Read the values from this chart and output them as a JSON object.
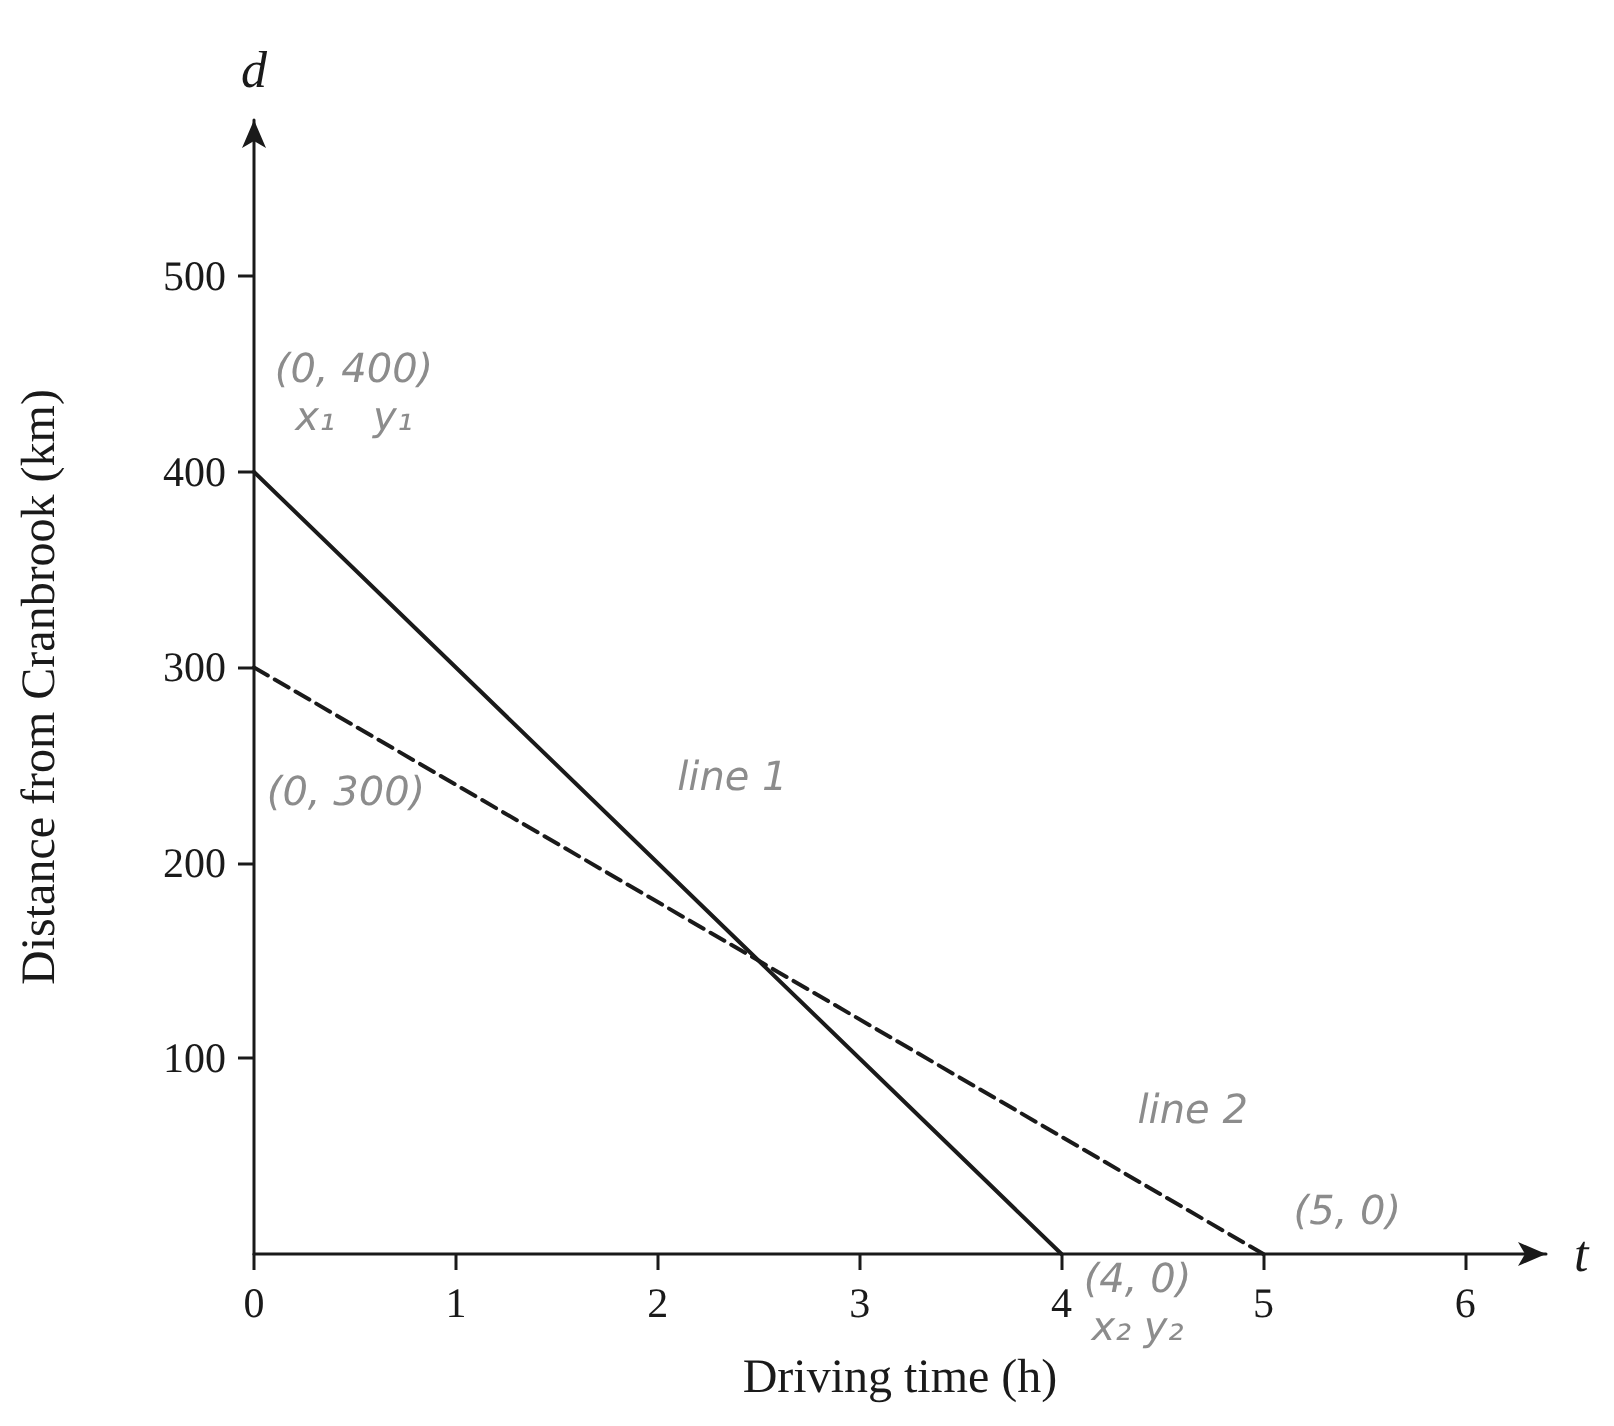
{
  "chart_data": {
    "type": "line",
    "xlabel": "Driving time (h)",
    "ylabel": "Distance from Cranbrook (km)",
    "series": [
      {
        "name": "line 1",
        "color": "#1a1a1a",
        "line_style": "solid",
        "x": [
          0,
          4
        ],
        "values": [
          400,
          0
        ]
      },
      {
        "name": "line 2",
        "color": "#1a1a1a",
        "line_style": "dashed",
        "x": [
          0,
          5
        ],
        "values": [
          300,
          0
        ]
      }
    ],
    "xlim": [
      0,
      6.4
    ],
    "xticks": [
      0,
      1,
      2,
      3,
      4,
      5,
      6
    ],
    "ylim": [
      0,
      580
    ],
    "yticks": [
      100,
      200,
      300,
      400,
      500
    ],
    "grid": false,
    "marker": "none",
    "annotations": [
      {
        "text": "(0, 400)\nx₁   y₁",
        "x": 0,
        "y": 400
      },
      {
        "text": "(0, 300)",
        "x": 0,
        "y": 300
      },
      {
        "text": "(5, 0)",
        "x": 5,
        "y": 0
      },
      {
        "text": "(4, 0)\nx₂ y₂",
        "x": 4,
        "y": 0
      },
      "t",
      "d"
    ]
  }
}
